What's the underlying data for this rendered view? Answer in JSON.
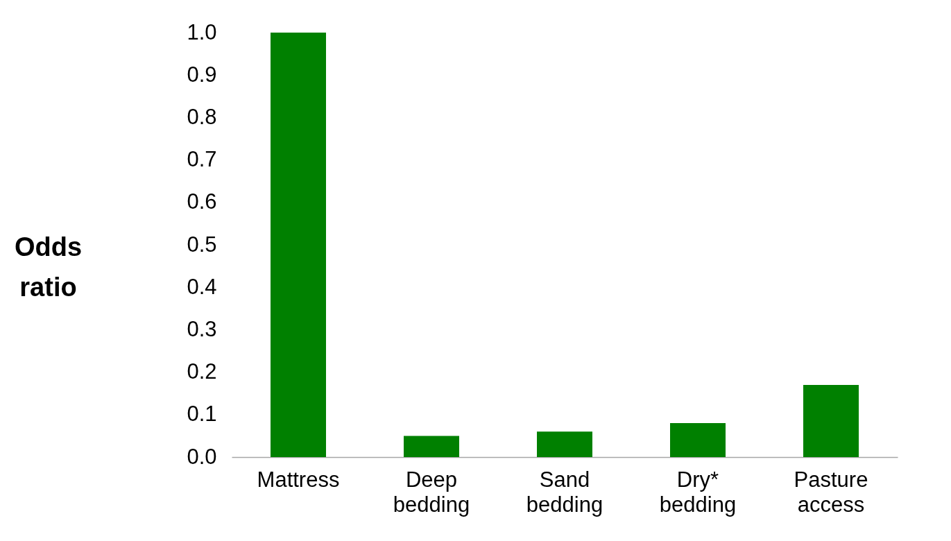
{
  "chart_data": {
    "type": "bar",
    "ylabel": "Odds ratio",
    "categories": [
      "Mattress",
      "Deep bedding",
      "Sand bedding",
      "Dry* bedding",
      "Pasture access"
    ],
    "values": [
      1.0,
      0.05,
      0.06,
      0.08,
      0.17
    ],
    "color": "#008000",
    "ylim": [
      0,
      1.0
    ],
    "yticks": [
      {
        "value": 0,
        "label": "0.0"
      },
      {
        "value": 0.1,
        "label": "0.1"
      },
      {
        "value": 0.2,
        "label": "0.2"
      },
      {
        "value": 0.3,
        "label": "0.3"
      },
      {
        "value": 0.4,
        "label": "0.4"
      },
      {
        "value": 0.5,
        "label": "0.5"
      },
      {
        "value": 0.6,
        "label": "0.6"
      },
      {
        "value": 0.7,
        "label": "0.7"
      },
      {
        "value": 0.8,
        "label": "0.8"
      },
      {
        "value": 0.9,
        "label": "0.9"
      },
      {
        "value": 1.0,
        "label": "1.0"
      }
    ],
    "grid": false
  }
}
